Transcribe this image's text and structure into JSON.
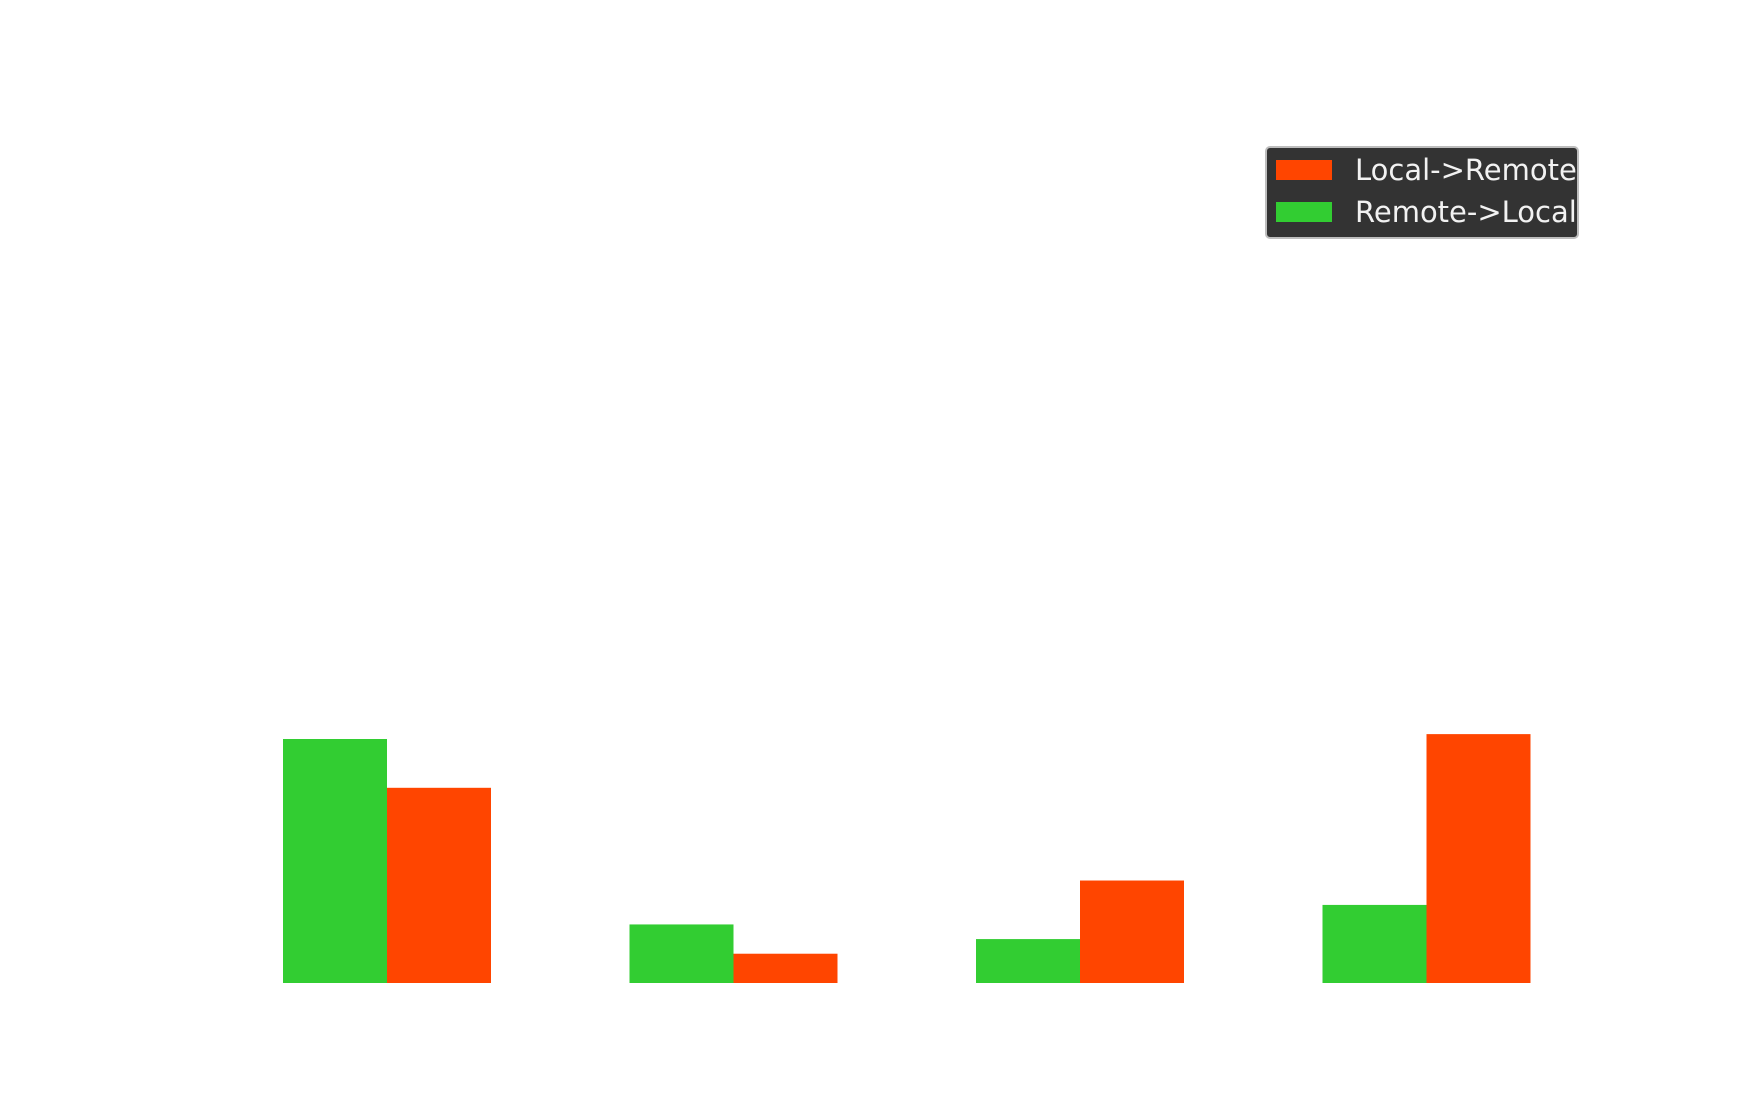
{
  "chart_data": {
    "type": "bar",
    "title": "",
    "xlabel": "",
    "ylabel": "",
    "categories": [
      "",
      "",
      "",
      ""
    ],
    "ylim": [
      0,
      4
    ],
    "grid": false,
    "legend_position": "top-right",
    "series": [
      {
        "name": "Remote->Local",
        "color": "#32cd32",
        "values": [
          1.0,
          0.24,
          0.18,
          0.32
        ]
      },
      {
        "name": "Local->Remote",
        "color": "#ff4500",
        "values": [
          0.8,
          0.12,
          0.42,
          1.02
        ]
      }
    ],
    "legend_entries": [
      "Local->Remote",
      "Remote->Local"
    ]
  }
}
